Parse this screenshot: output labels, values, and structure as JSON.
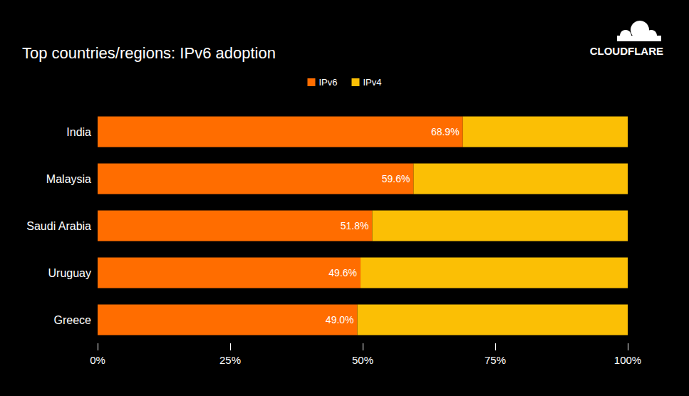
{
  "chart_data": {
    "type": "bar",
    "title": "Top countries/regions: IPv6 adoption",
    "brand": "CLOUDFLARE",
    "orientation": "horizontal",
    "stacked": true,
    "data_labels": true,
    "legend": "top",
    "grid": false,
    "categories": [
      "India",
      "Malaysia",
      "Saudi Arabia",
      "Uruguay",
      "Greece"
    ],
    "series": [
      {
        "name": "IPv6",
        "color": "#ff6d00",
        "values": [
          68.9,
          59.6,
          51.8,
          49.6,
          49.0
        ],
        "value_labels": [
          "68.9%",
          "59.6%",
          "51.8%",
          "49.6%",
          "49.0%"
        ]
      },
      {
        "name": "IPv4",
        "color": "#fbbf05",
        "values": [
          31.1,
          40.4,
          48.2,
          50.4,
          51.0
        ]
      }
    ],
    "xlim": [
      0,
      100
    ],
    "xticks": [
      {
        "value": 0,
        "label": "0%"
      },
      {
        "value": 25,
        "label": "25%"
      },
      {
        "value": 50,
        "label": "50%"
      },
      {
        "value": 75,
        "label": "75%"
      },
      {
        "value": 100,
        "label": "100%"
      }
    ]
  }
}
